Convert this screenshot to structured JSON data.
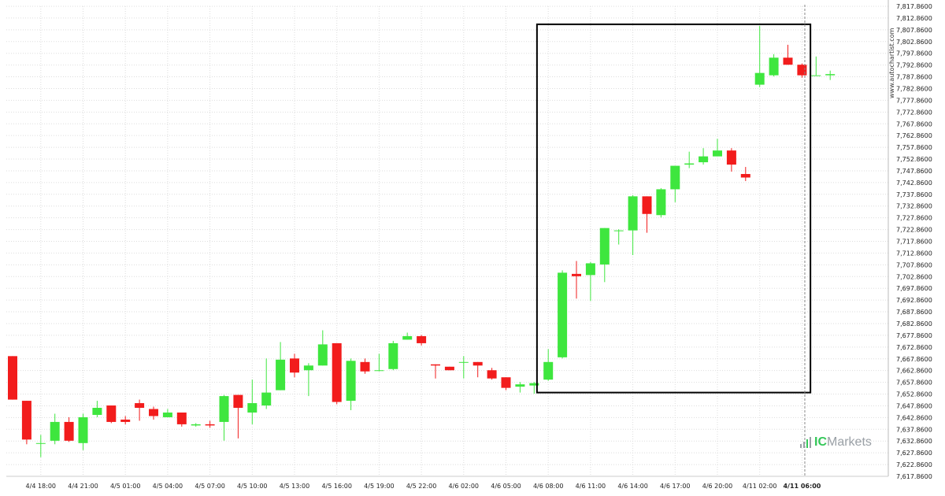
{
  "watermark": "www.autochartist.com",
  "brand": {
    "name": "Markets",
    "prefix": "IC",
    "icon": "icmarkets-logo-icon"
  },
  "colors": {
    "up": "#3ee63e",
    "down": "#f21c1c",
    "grid": "#dddddd",
    "highlight_box": "#000000",
    "current_line": "#888888"
  },
  "chart_data": {
    "type": "candlestick",
    "ylim": [
      7617.86,
      7817.86
    ],
    "y_ticks": [
      "7,617.8600",
      "7,622.8600",
      "7,627.8600",
      "7,632.8600",
      "7,637.8600",
      "7,642.8600",
      "7,647.8600",
      "7,652.8600",
      "7,657.8600",
      "7,662.8600",
      "7,667.8600",
      "7,672.8600",
      "7,677.8600",
      "7,682.8600",
      "7,687.8600",
      "7,692.8600",
      "7,697.8600",
      "7,702.8600",
      "7,707.8600",
      "7,712.8600",
      "7,717.8600",
      "7,722.8600",
      "7,727.8600",
      "7,732.8600",
      "7,737.8600",
      "7,742.8600",
      "7,747.8600",
      "7,752.8600",
      "7,757.8600",
      "7,762.8600",
      "7,767.8600",
      "7,772.8600",
      "7,777.8600",
      "7,782.8600",
      "7,787.8600",
      "7,792.8600",
      "7,797.8600",
      "7,802.8600",
      "7,807.8600",
      "7,812.8600",
      "7,817.8600"
    ],
    "x_labels": [
      {
        "index": 2,
        "label": "4/4 18:00"
      },
      {
        "index": 5,
        "label": "4/4 21:00"
      },
      {
        "index": 8,
        "label": "4/5 01:00"
      },
      {
        "index": 11,
        "label": "4/5 04:00"
      },
      {
        "index": 14,
        "label": "4/5 07:00"
      },
      {
        "index": 17,
        "label": "4/5 10:00"
      },
      {
        "index": 20,
        "label": "4/5 13:00"
      },
      {
        "index": 23,
        "label": "4/5 16:00"
      },
      {
        "index": 26,
        "label": "4/5 19:00"
      },
      {
        "index": 29,
        "label": "4/5 22:00"
      },
      {
        "index": 32,
        "label": "4/6 02:00"
      },
      {
        "index": 35,
        "label": "4/6 05:00"
      },
      {
        "index": 38,
        "label": "4/6 08:00"
      },
      {
        "index": 41,
        "label": "4/6 11:00"
      },
      {
        "index": 44,
        "label": "4/6 14:00"
      },
      {
        "index": 47,
        "label": "4/6 17:00"
      },
      {
        "index": 50,
        "label": "4/6 20:00"
      },
      {
        "index": 53,
        "label": "4/11 02:00"
      },
      {
        "index": 56,
        "label": "4/11 06:00",
        "bold": true
      }
    ],
    "candles": [
      {
        "o": 7669.0,
        "h": 7669.0,
        "l": 7650.5,
        "c": 7650.5
      },
      {
        "o": 7650.0,
        "h": 7650.0,
        "l": 7631.5,
        "c": 7633.5
      },
      {
        "o": 7632.0,
        "h": 7635.5,
        "l": 7626.0,
        "c": 7632.0
      },
      {
        "o": 7633.0,
        "h": 7644.5,
        "l": 7631.5,
        "c": 7641.0
      },
      {
        "o": 7641.0,
        "h": 7643.0,
        "l": 7632.5,
        "c": 7633.0
      },
      {
        "o": 7632.0,
        "h": 7644.5,
        "l": 7629.0,
        "c": 7643.0
      },
      {
        "o": 7644.0,
        "h": 7650.0,
        "l": 7643.0,
        "c": 7647.0
      },
      {
        "o": 7648.0,
        "h": 7648.0,
        "l": 7640.5,
        "c": 7641.0
      },
      {
        "o": 7642.0,
        "h": 7643.5,
        "l": 7640.0,
        "c": 7641.0
      },
      {
        "o": 7649.0,
        "h": 7650.5,
        "l": 7641.5,
        "c": 7647.0
      },
      {
        "o": 7646.5,
        "h": 7647.5,
        "l": 7642.0,
        "c": 7643.5
      },
      {
        "o": 7643.0,
        "h": 7646.5,
        "l": 7643.0,
        "c": 7645.0
      },
      {
        "o": 7645.0,
        "h": 7645.0,
        "l": 7639.0,
        "c": 7640.0
      },
      {
        "o": 7639.5,
        "h": 7640.5,
        "l": 7639.0,
        "c": 7640.0
      },
      {
        "o": 7640.0,
        "h": 7641.5,
        "l": 7638.5,
        "c": 7639.5
      },
      {
        "o": 7641.0,
        "h": 7652.5,
        "l": 7633.0,
        "c": 7652.0
      },
      {
        "o": 7652.5,
        "h": 7652.5,
        "l": 7634.0,
        "c": 7647.0
      },
      {
        "o": 7645.0,
        "h": 7659.0,
        "l": 7640.0,
        "c": 7649.0
      },
      {
        "o": 7648.0,
        "h": 7668.0,
        "l": 7646.5,
        "c": 7653.5
      },
      {
        "o": 7654.5,
        "h": 7675.0,
        "l": 7654.5,
        "c": 7667.5
      },
      {
        "o": 7668.0,
        "h": 7670.0,
        "l": 7660.0,
        "c": 7662.0
      },
      {
        "o": 7663.0,
        "h": 7666.0,
        "l": 7652.0,
        "c": 7665.0
      },
      {
        "o": 7665.0,
        "h": 7680.0,
        "l": 7665.0,
        "c": 7674.0
      },
      {
        "o": 7674.5,
        "h": 7674.5,
        "l": 7648.5,
        "c": 7649.5
      },
      {
        "o": 7650.0,
        "h": 7668.0,
        "l": 7646.0,
        "c": 7667.0
      },
      {
        "o": 7666.5,
        "h": 7668.0,
        "l": 7661.5,
        "c": 7662.5
      },
      {
        "o": 7663.0,
        "h": 7670.0,
        "l": 7662.5,
        "c": 7663.0
      },
      {
        "o": 7663.5,
        "h": 7675.5,
        "l": 7663.0,
        "c": 7674.5
      },
      {
        "o": 7676.0,
        "h": 7679.0,
        "l": 7676.0,
        "c": 7677.5
      },
      {
        "o": 7677.5,
        "h": 7678.0,
        "l": 7673.5,
        "c": 7674.5
      },
      {
        "o": 7665.5,
        "h": 7665.5,
        "l": 7659.5,
        "c": 7665.0
      },
      {
        "o": 7664.5,
        "h": 7664.5,
        "l": 7663.0,
        "c": 7663.0
      },
      {
        "o": 7666.5,
        "h": 7669.0,
        "l": 7659.5,
        "c": 7666.5
      },
      {
        "o": 7666.5,
        "h": 7666.5,
        "l": 7660.0,
        "c": 7665.0
      },
      {
        "o": 7663.0,
        "h": 7664.0,
        "l": 7659.0,
        "c": 7659.5
      },
      {
        "o": 7660.0,
        "h": 7660.0,
        "l": 7654.5,
        "c": 7655.5
      },
      {
        "o": 7656.0,
        "h": 7658.0,
        "l": 7653.5,
        "c": 7657.0
      },
      {
        "o": 7656.5,
        "h": 7658.0,
        "l": 7653.0,
        "c": 7657.5
      },
      {
        "o": 7659.0,
        "h": 7672.0,
        "l": 7658.5,
        "c": 7666.5
      },
      {
        "o": 7668.5,
        "h": 7705.5,
        "l": 7668.0,
        "c": 7704.5
      },
      {
        "o": 7704.0,
        "h": 7709.5,
        "l": 7693.5,
        "c": 7703.0
      },
      {
        "o": 7703.5,
        "h": 7709.0,
        "l": 7692.5,
        "c": 7708.5
      },
      {
        "o": 7708.0,
        "h": 7723.5,
        "l": 7700.5,
        "c": 7723.5
      },
      {
        "o": 7722.5,
        "h": 7723.0,
        "l": 7716.5,
        "c": 7722.5
      },
      {
        "o": 7722.5,
        "h": 7737.5,
        "l": 7712.0,
        "c": 7737.0
      },
      {
        "o": 7737.0,
        "h": 7737.0,
        "l": 7721.5,
        "c": 7729.5
      },
      {
        "o": 7729.0,
        "h": 7740.5,
        "l": 7728.0,
        "c": 7740.0
      },
      {
        "o": 7740.0,
        "h": 7750.0,
        "l": 7734.5,
        "c": 7750.0
      },
      {
        "o": 7750.5,
        "h": 7756.0,
        "l": 7749.0,
        "c": 7751.0
      },
      {
        "o": 7751.5,
        "h": 7757.5,
        "l": 7750.5,
        "c": 7754.0
      },
      {
        "o": 7754.0,
        "h": 7761.5,
        "l": 7754.0,
        "c": 7756.5
      },
      {
        "o": 7756.5,
        "h": 7757.5,
        "l": 7747.5,
        "c": 7750.5
      },
      {
        "o": 7746.5,
        "h": 7749.5,
        "l": 7743.5,
        "c": 7745.0
      },
      {
        "o": 7784.5,
        "h": 7809.5,
        "l": 7783.5,
        "c": 7789.5
      },
      {
        "o": 7788.5,
        "h": 7797.5,
        "l": 7788.0,
        "c": 7796.0
      },
      {
        "o": 7796.0,
        "h": 7801.5,
        "l": 7793.0,
        "c": 7793.0
      },
      {
        "o": 7793.0,
        "h": 7793.5,
        "l": 7787.5,
        "c": 7788.5
      },
      {
        "o": 7788.5,
        "h": 7796.5,
        "l": 7788.5,
        "c": 7788.5
      },
      {
        "o": 7788.5,
        "h": 7790.5,
        "l": 7786.5,
        "c": 7789.0
      }
    ],
    "highlight_box": {
      "x_start": 37.2,
      "x_end": 56.6,
      "y_top": 7810.2,
      "y_bottom": 7653.5
    },
    "current_time_index": 56.2
  }
}
